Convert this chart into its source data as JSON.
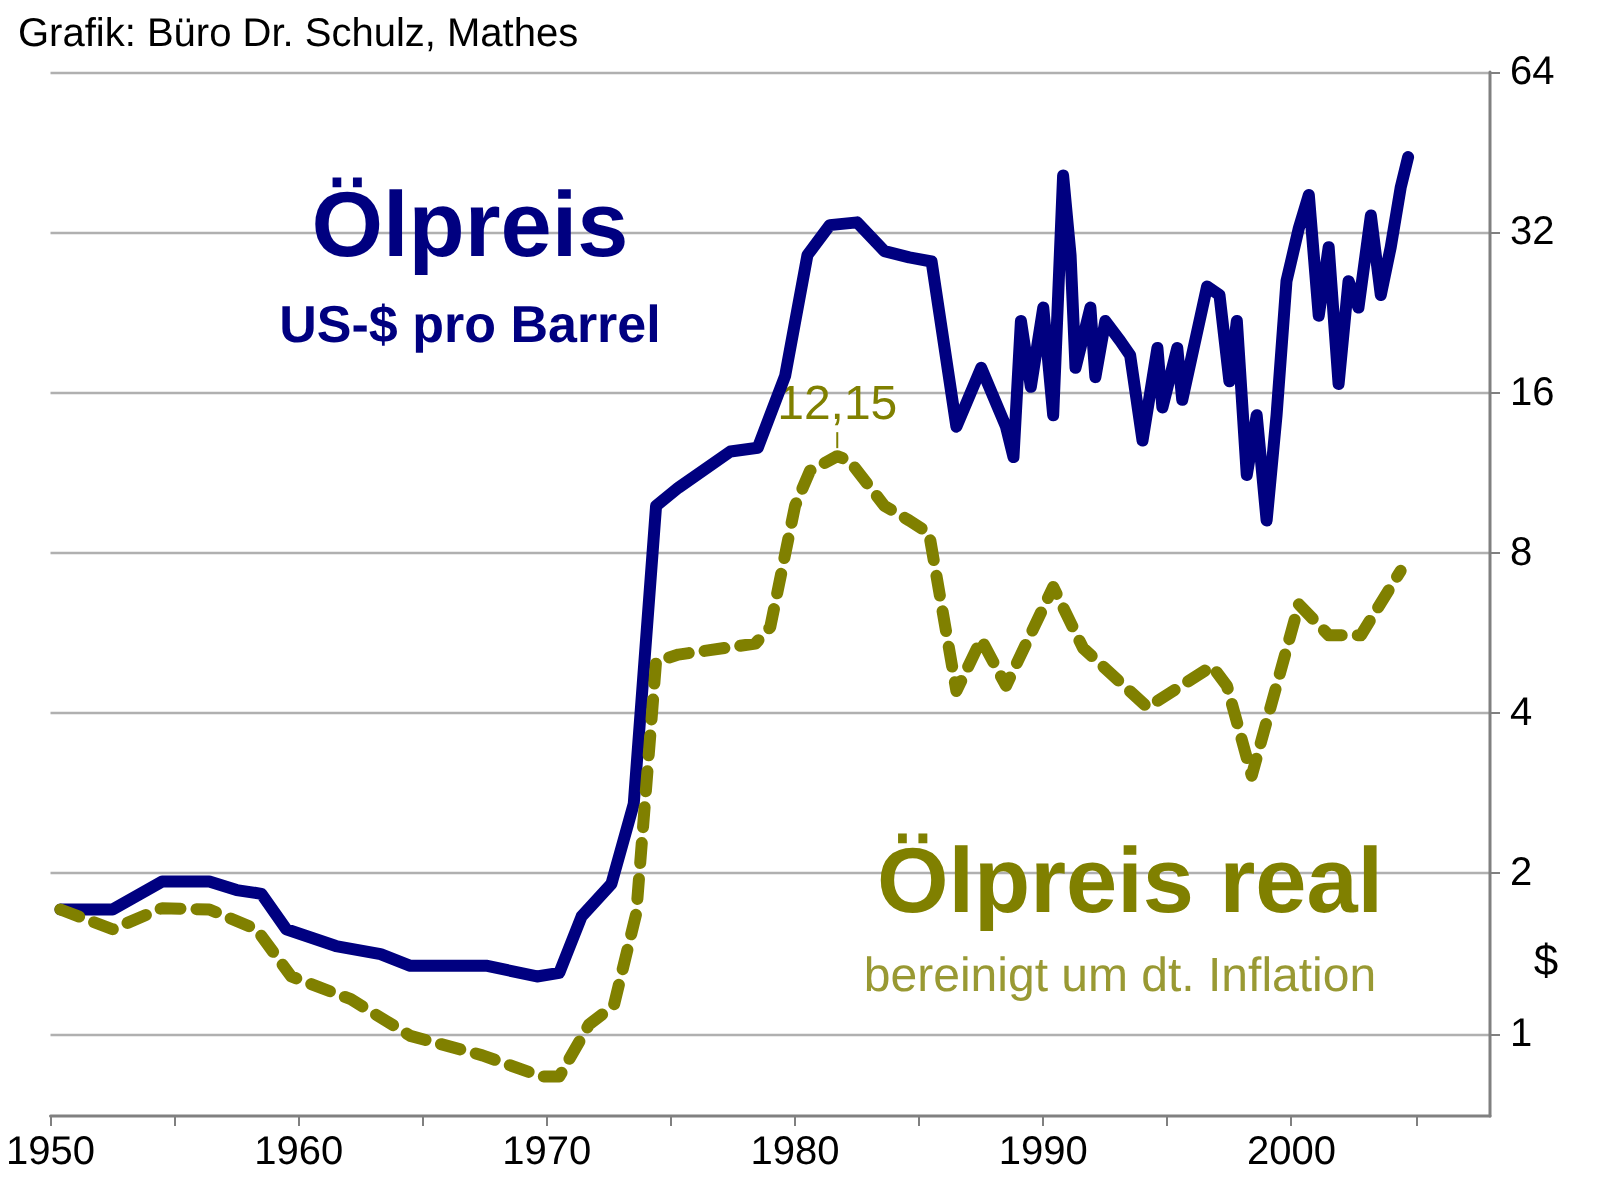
{
  "chart_data": {
    "type": "line",
    "title": "Grafik: Büro Dr. Schulz, Mathes",
    "ylabel": "$",
    "xlim": [
      1950,
      2008
    ],
    "xticks": [
      1950,
      {
        "value": 1955,
        "label": null
      },
      1960,
      {
        "value": 1965,
        "label": null
      },
      1970,
      {
        "value": 1975,
        "label": null
      },
      1980,
      {
        "value": 1985,
        "label": null
      },
      1990,
      {
        "value": 1995,
        "label": null
      },
      2000,
      {
        "value": 2005,
        "label": null
      }
    ],
    "ylim": [
      0.7,
      64
    ],
    "yticks": [
      1,
      2,
      4,
      8,
      16,
      32,
      64
    ],
    "log": true,
    "grid": "y",
    "legend": false,
    "marker": "none",
    "series": [
      {
        "name": "Ölpreis",
        "color": "#000080",
        "line_style": "solid",
        "x": [
          1950.4,
          1952.5,
          1954.5,
          1956.4,
          1957.5,
          1958.5,
          1959.5,
          1961.5,
          1963.3,
          1964.5,
          1967.6,
          1969.6,
          1970.5,
          1971.4,
          1972.6,
          1973.5,
          1974.4,
          1975.3,
          1977.4,
          1978.5,
          1979.6,
          1980.5,
          1981.4,
          1982.5,
          1983.6,
          1984.6,
          1985.5,
          1986.5,
          1987.5,
          1988.5,
          1988.8,
          1989.1,
          1989.5,
          1990.0,
          1990.4,
          1990.8,
          1991.1,
          1991.3,
          1991.9,
          1992.1,
          1992.5,
          1993.1,
          1993.5,
          1994.0,
          1994.6,
          1994.8,
          1995.4,
          1995.6,
          1996.6,
          1997.1,
          1997.5,
          1997.8,
          1998.2,
          1998.6,
          1999.0,
          1999.4,
          1999.8,
          2000.3,
          2000.7,
          2001.1,
          2001.5,
          2001.9,
          2002.3,
          2002.7,
          2003.2,
          2003.6,
          2004.0,
          2004.4,
          2004.7
        ],
        "values": [
          1.71,
          1.71,
          1.93,
          1.93,
          1.86,
          1.83,
          1.57,
          1.46,
          1.41,
          1.34,
          1.34,
          1.28,
          1.3,
          1.66,
          1.91,
          2.7,
          9.8,
          10.6,
          12.4,
          12.6,
          17.2,
          29,
          33,
          33.4,
          29.5,
          28.7,
          28.2,
          13.8,
          17.8,
          13.8,
          12.1,
          21.8,
          16.4,
          23.1,
          14.5,
          40.9,
          29,
          17.8,
          23.1,
          17.1,
          21.8,
          20,
          18.8,
          13,
          19.4,
          15,
          19.4,
          15.5,
          25.3,
          24.4,
          16.8,
          21.8,
          11.2,
          14.5,
          9.2,
          14.5,
          25.9,
          32.6,
          37.6,
          22.3,
          30,
          16.6,
          25.9,
          23.1,
          34.4,
          24.4,
          30,
          38.8,
          44.3
        ]
      },
      {
        "name": "Ölpreis real",
        "color": "#808000",
        "line_style": "dashed",
        "x": [
          1950.4,
          1952.5,
          1954.5,
          1956.4,
          1958.3,
          1959.7,
          1962.1,
          1964.5,
          1967.4,
          1969.8,
          1970.5,
          1971.7,
          1972.7,
          1973.6,
          1974.4,
          1975.3,
          1978.4,
          1979.0,
          1980.0,
          1980.6,
          1981.7,
          1982.2,
          1983.6,
          1984.6,
          1985.4,
          1986.5,
          1987.5,
          1988.5,
          1990.4,
          1991.6,
          1994.2,
          1996.8,
          1997.4,
          1998.4,
          2000.3,
          2001.5,
          2002.8,
          2004.4
        ],
        "values": [
          1.71,
          1.57,
          1.72,
          1.71,
          1.57,
          1.28,
          1.16,
          0.99,
          0.91,
          0.83,
          0.83,
          1.04,
          1.13,
          1.68,
          5.0,
          5.15,
          5.4,
          5.8,
          9.8,
          11.4,
          12.15,
          11.9,
          9.8,
          9.2,
          8.7,
          4.4,
          5.5,
          4.5,
          6.9,
          5.3,
          4.1,
          4.9,
          4.5,
          3.05,
          6.4,
          5.6,
          5.6,
          7.4
        ]
      }
    ],
    "annotations": [
      "US-$ pro Barrel",
      "bereinigt um dt. Inflation",
      {
        "text": "12,15",
        "x": 1981.7,
        "y": 12.15
      }
    ]
  }
}
